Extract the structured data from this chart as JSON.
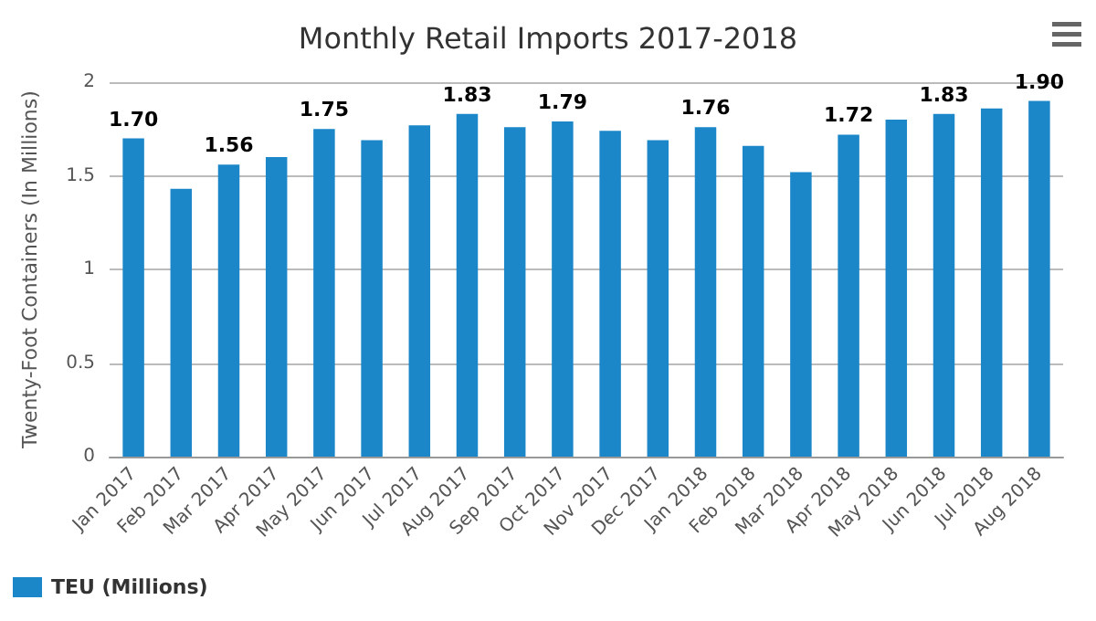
{
  "chart_data": {
    "type": "bar",
    "title": "Monthly Retail Imports 2017-2018",
    "ylabel": "Twenty-Foot Containers (In Millions)",
    "categories": [
      "Jan 2017",
      "Feb 2017",
      "Mar 2017",
      "Apr 2017",
      "May 2017",
      "Jun 2017",
      "Jul 2017",
      "Aug 2017",
      "Sep 2017",
      "Oct 2017",
      "Nov 2017",
      "Dec 2017",
      "Jan 2018",
      "Feb 2018",
      "Mar 2018",
      "Apr 2018",
      "May 2018",
      "Jun 2018",
      "Jul 2018",
      "Aug 2018"
    ],
    "series": [
      {
        "name": "TEU (Millions)",
        "color": "#1b87c9",
        "values": [
          1.7,
          1.43,
          1.56,
          1.6,
          1.75,
          1.69,
          1.77,
          1.83,
          1.76,
          1.79,
          1.74,
          1.69,
          1.76,
          1.66,
          1.52,
          1.72,
          1.8,
          1.83,
          1.86,
          1.9
        ],
        "value_labels": [
          "1.70",
          null,
          "1.56",
          null,
          "1.75",
          null,
          null,
          "1.83",
          null,
          "1.79",
          null,
          null,
          "1.76",
          null,
          null,
          "1.72",
          null,
          "1.83",
          null,
          "1.90"
        ]
      }
    ],
    "ylim": [
      0,
      2
    ],
    "yticks": [
      0,
      0.5,
      1,
      1.5,
      2
    ],
    "grid": "y",
    "legend": "bottom left"
  }
}
